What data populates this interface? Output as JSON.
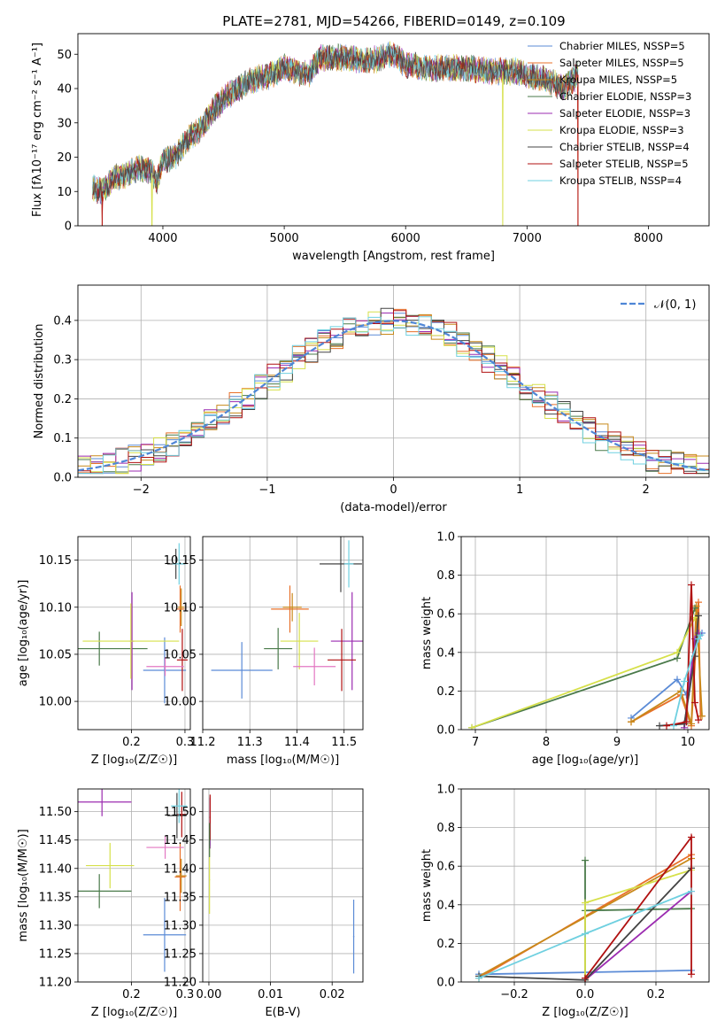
{
  "figure_title": "PLATE=2781, MJD=54266, FIBERID=0149, z=0.109",
  "series": [
    {
      "name": "Chabrier MILES, N<sub>SSP</sub>=5",
      "label": "Chabrier MILES, NSSP=5",
      "color": "#5b8bd6"
    },
    {
      "name": "Salpeter MILES, NSSP=5",
      "label": "Salpeter MILES, NSSP=5",
      "color": "#e8702a"
    },
    {
      "name": "Kroupa MILES, NSSP=5",
      "label": "Kroupa MILES, NSSP=5",
      "color": "#c8891a"
    },
    {
      "name": "Chabrier ELODIE, NSSP=3",
      "label": "Chabrier ELODIE, NSSP=3",
      "color": "#4a7a4a"
    },
    {
      "name": "Salpeter ELODIE, NSSP=3",
      "label": "Salpeter ELODIE, NSSP=3",
      "color": "#9b2bb0"
    },
    {
      "name": "Kroupa ELODIE, NSSP=3",
      "label": "Kroupa ELODIE, NSSP=3",
      "color": "#d6e04a"
    },
    {
      "name": "Chabrier STELIB, NSSP=4",
      "label": "Chabrier STELIB, NSSP=4",
      "color": "#444444"
    },
    {
      "name": "Salpeter STELIB, NSSP=5",
      "label": "Salpeter STELIB, NSSP=5",
      "color": "#b01010"
    },
    {
      "name": "Kroupa STELIB, NSSP=4",
      "label": "Kroupa STELIB, NSSP=4",
      "color": "#6fd0e0"
    }
  ],
  "chart_data": [
    {
      "id": "spectrum",
      "type": "line",
      "xlabel": "wavelength [Angstrom, rest frame]",
      "ylabel": "Flux [fλ10⁻¹⁷ erg cm⁻² s⁻¹ A⁻¹]",
      "xlim": [
        3300,
        8500
      ],
      "ylim": [
        0,
        56
      ],
      "xticks": [
        4000,
        5000,
        6000,
        7000,
        8000
      ],
      "yticks": [
        0,
        10,
        20,
        30,
        40,
        50
      ],
      "x_knots": [
        3420,
        3500,
        3600,
        3700,
        3800,
        3900,
        3950,
        4000,
        4100,
        4200,
        4300,
        4400,
        4500,
        4700,
        4900,
        5000,
        5100,
        5200,
        5300,
        5500,
        5700,
        5900,
        6000,
        6200,
        6500,
        6700,
        6900,
        7000,
        7100,
        7200,
        7300,
        7420
      ],
      "y_knots": [
        11,
        10,
        14,
        15,
        17,
        16,
        13,
        19,
        20,
        25,
        28,
        33,
        37,
        42,
        44,
        46,
        45,
        44,
        49,
        49,
        48,
        50,
        47,
        46,
        46,
        45,
        45,
        44,
        43,
        42,
        40,
        44
      ],
      "dropouts": [
        {
          "x": 3500,
          "series": [
            1,
            7
          ]
        },
        {
          "x": 3910,
          "series": [
            5
          ]
        },
        {
          "x": 6800,
          "series": [
            5
          ]
        },
        {
          "x": 7420,
          "series": [
            1,
            7
          ]
        }
      ]
    },
    {
      "id": "residuals",
      "type": "histogram",
      "xlabel": "(data-model)/error",
      "ylabel": "Normed distribution",
      "xlim": [
        -2.5,
        2.5
      ],
      "ylim": [
        0,
        0.49
      ],
      "xticks": [
        -2,
        -1,
        0,
        1,
        2
      ],
      "yticks": [
        0.0,
        0.1,
        0.2,
        0.3,
        0.4
      ],
      "bin_width": 0.1,
      "grid": true,
      "reference_curve": {
        "label": "𝒩(0, 1)",
        "color": "#4f86d6"
      }
    },
    {
      "id": "age-vs-Z",
      "type": "errorbar",
      "xlabel": "Z [log₁₀(Z/Z☉)]",
      "ylabel": "age  [log₁₀(age/yr)]",
      "xlim": [
        0.1,
        0.31
      ],
      "ylim": [
        9.97,
        10.175
      ],
      "xticks": [
        0.2,
        0.3
      ],
      "yticks": [
        10.0,
        10.05,
        10.1,
        10.15
      ],
      "points": [
        {
          "s": 0,
          "x": 0.262,
          "y": 10.033,
          "xe": 0.04,
          "ye": 0.035
        },
        {
          "s": 1,
          "x": 0.291,
          "y": 10.098,
          "xe": 0.008,
          "ye": 0.025
        },
        {
          "s": 2,
          "x": 0.293,
          "y": 10.1,
          "xe": 0.006,
          "ye": 0.02
        },
        {
          "s": 3,
          "x": 0.14,
          "y": 10.056,
          "xe": 0.09,
          "ye": 0.018
        },
        {
          "s": 4,
          "x": 0.201,
          "y": 10.064,
          "xe": 0.004,
          "ye": 0.052
        },
        {
          "s": 5,
          "x": 0.199,
          "y": 10.064,
          "xe": 0.09,
          "ye": 0.04
        },
        {
          "s": 6,
          "x": 0.283,
          "y": 10.146,
          "xe": 0.016,
          "ye": 0.016
        },
        {
          "s": 7,
          "x": 0.295,
          "y": 10.044,
          "xe": 0.01,
          "ye": 0.033
        },
        {
          "s": 8,
          "x": 0.289,
          "y": 10.146,
          "xe": 0.012,
          "ye": 0.022
        }
      ],
      "extra_points": [
        {
          "s": 1,
          "x": 0.263,
          "y": 10.037,
          "xe": 0.035,
          "ye": 0.01,
          "color": "#e377c2"
        }
      ]
    },
    {
      "id": "age-vs-mass",
      "type": "errorbar",
      "xlabel": "mass [log₁₀(M/M☉)]",
      "xlim": [
        11.2,
        11.54
      ],
      "ylim": [
        9.97,
        10.175
      ],
      "xticks": [
        11.2,
        11.3,
        11.4,
        11.5
      ],
      "yticks": [
        10.0,
        10.05,
        10.1,
        10.15
      ],
      "points": [
        {
          "s": 0,
          "x": 11.283,
          "y": 10.033,
          "xe": 0.065,
          "ye": 0.03
        },
        {
          "s": 1,
          "x": 11.385,
          "y": 10.098,
          "xe": 0.04,
          "ye": 0.025
        },
        {
          "s": 2,
          "x": 11.39,
          "y": 10.1,
          "xe": 0.02,
          "ye": 0.015
        },
        {
          "s": 3,
          "x": 11.36,
          "y": 10.056,
          "xe": 0.03,
          "ye": 0.022
        },
        {
          "s": 4,
          "x": 11.517,
          "y": 10.064,
          "xe": 0.045,
          "ye": 0.052
        },
        {
          "s": 5,
          "x": 11.405,
          "y": 10.064,
          "xe": 0.04,
          "ye": 0.03
        },
        {
          "s": 6,
          "x": 11.493,
          "y": 10.146,
          "xe": 0.045,
          "ye": 0.03
        },
        {
          "s": 7,
          "x": 11.495,
          "y": 10.044,
          "xe": 0.03,
          "ye": 0.033
        },
        {
          "s": 8,
          "x": 11.51,
          "y": 10.146,
          "xe": 0.01,
          "ye": 0.025
        }
      ],
      "extra_points": [
        {
          "s": 1,
          "x": 11.437,
          "y": 10.037,
          "xe": 0.045,
          "ye": 0.02,
          "color": "#e377c2"
        }
      ]
    },
    {
      "id": "weight-vs-age",
      "type": "line",
      "xlabel": "age  [log₁₀(age/yr)]",
      "ylabel": "mass weight",
      "xlim": [
        6.8,
        10.3
      ],
      "ylim": [
        0,
        1.0
      ],
      "xticks": [
        7,
        8,
        9,
        10
      ],
      "yticks": [
        0.0,
        0.2,
        0.4,
        0.6,
        0.8,
        1.0
      ],
      "grid": true,
      "lines": [
        {
          "s": 0,
          "pts": [
            [
              9.2,
              0.06
            ],
            [
              9.85,
              0.26
            ],
            [
              9.98,
              0.18
            ],
            [
              10.15,
              0.49
            ],
            [
              10.2,
              0.5
            ]
          ]
        },
        {
          "s": 1,
          "pts": [
            [
              9.2,
              0.04
            ],
            [
              9.9,
              0.18
            ],
            [
              10.05,
              0.02
            ],
            [
              10.15,
              0.66
            ],
            [
              10.18,
              0.07
            ]
          ]
        },
        {
          "s": 2,
          "pts": [
            [
              9.2,
              0.04
            ],
            [
              9.9,
              0.2
            ],
            [
              10.05,
              0.03
            ],
            [
              10.12,
              0.64
            ],
            [
              10.2,
              0.07
            ]
          ]
        },
        {
          "s": 3,
          "pts": [
            [
              6.95,
              0.01
            ],
            [
              9.85,
              0.37
            ],
            [
              10.1,
              0.63
            ]
          ]
        },
        {
          "s": 4,
          "pts": [
            [
              9.95,
              0.01
            ],
            [
              10.1,
              0.47
            ],
            [
              10.15,
              0.5
            ]
          ]
        },
        {
          "s": 5,
          "pts": [
            [
              6.95,
              0.01
            ],
            [
              9.85,
              0.4
            ],
            [
              10.1,
              0.58
            ]
          ]
        },
        {
          "s": 6,
          "pts": [
            [
              9.6,
              0.02
            ],
            [
              9.95,
              0.03
            ],
            [
              10.1,
              0.38
            ],
            [
              10.15,
              0.59
            ]
          ]
        },
        {
          "s": 7,
          "pts": [
            [
              9.7,
              0.02
            ],
            [
              9.98,
              0.04
            ],
            [
              10.05,
              0.75
            ],
            [
              10.1,
              0.14
            ],
            [
              10.15,
              0.05
            ]
          ]
        },
        {
          "s": 8,
          "pts": [
            [
              9.8,
              0.02
            ],
            [
              9.95,
              0.25
            ],
            [
              10.15,
              0.47
            ],
            [
              10.18,
              0.49
            ]
          ]
        }
      ]
    },
    {
      "id": "mass-vs-Z",
      "type": "errorbar",
      "xlabel": "Z [log₁₀(Z/Z☉)]",
      "ylabel": "mass [log₁₀(M/M☉)]",
      "xlim": [
        0.1,
        0.31
      ],
      "ylim": [
        11.2,
        11.54
      ],
      "xticks": [
        0.2,
        0.3
      ],
      "yticks": [
        11.2,
        11.25,
        11.3,
        11.35,
        11.4,
        11.45,
        11.5
      ],
      "points": [
        {
          "s": 0,
          "x": 0.262,
          "y": 11.283,
          "xe": 0.04,
          "ye": 0.065
        },
        {
          "s": 1,
          "x": 0.291,
          "y": 11.385,
          "xe": 0.01,
          "ye": 0.06
        },
        {
          "s": 2,
          "x": 0.293,
          "y": 11.387,
          "xe": 0.01,
          "ye": 0.03
        },
        {
          "s": 3,
          "x": 0.14,
          "y": 11.36,
          "xe": 0.06,
          "ye": 0.03
        },
        {
          "s": 4,
          "x": 0.145,
          "y": 11.517,
          "xe": 0.055,
          "ye": 0.025
        },
        {
          "s": 5,
          "x": 0.16,
          "y": 11.405,
          "xe": 0.045,
          "ye": 0.04
        },
        {
          "s": 6,
          "x": 0.285,
          "y": 11.493,
          "xe": 0.018,
          "ye": 0.04
        },
        {
          "s": 7,
          "x": 0.294,
          "y": 11.495,
          "xe": 0.008,
          "ye": 0.04
        },
        {
          "s": 8,
          "x": 0.289,
          "y": 11.51,
          "xe": 0.015,
          "ye": 0.03
        }
      ],
      "extra_points": [
        {
          "s": 1,
          "x": 0.263,
          "y": 11.437,
          "xe": 0.035,
          "ye": 0.02,
          "color": "#e377c2"
        }
      ]
    },
    {
      "id": "mass-vs-ebv",
      "type": "errorbar",
      "xlabel": "E(B-V)",
      "xlim": [
        -0.001,
        0.025
      ],
      "ylim": [
        11.2,
        11.54
      ],
      "xticks": [
        0.0,
        0.01,
        0.02
      ],
      "yticks": [
        11.2,
        11.25,
        11.3,
        11.35,
        11.4,
        11.45,
        11.5
      ],
      "points": [
        {
          "s": 0,
          "x": 0.0235,
          "y": 11.28,
          "xe": 0.0001,
          "ye": 0.065
        },
        {
          "s": 4,
          "x": 0.0002,
          "y": 11.48,
          "xe": 0.0001,
          "ye": 0.045
        },
        {
          "s": 7,
          "x": 0.0002,
          "y": 11.49,
          "xe": 0.0001,
          "ye": 0.04
        },
        {
          "s": 5,
          "x": 0.0001,
          "y": 11.38,
          "xe": 0.0001,
          "ye": 0.06
        },
        {
          "s": 3,
          "x": 0.0001,
          "y": 11.45,
          "xe": 0.0001,
          "ye": 0.03
        }
      ]
    },
    {
      "id": "weight-vs-Z",
      "type": "line",
      "xlabel": "Z [log₁₀(Z/Z☉)]",
      "ylabel": "mass weight",
      "xlim": [
        -0.35,
        0.35
      ],
      "ylim": [
        0,
        1.0
      ],
      "xticks": [
        -0.2,
        0.0,
        0.2
      ],
      "yticks": [
        0.0,
        0.2,
        0.4,
        0.6,
        0.8,
        1.0
      ],
      "grid": true,
      "lines": [
        {
          "s": 0,
          "pts": [
            [
              -0.3,
              0.04
            ],
            [
              0.0,
              0.05
            ],
            [
              0.3,
              0.06
            ]
          ]
        },
        {
          "s": 1,
          "pts": [
            [
              -0.3,
              0.02
            ],
            [
              0.3,
              0.66
            ]
          ]
        },
        {
          "s": 2,
          "pts": [
            [
              -0.3,
              0.03
            ],
            [
              0.3,
              0.64
            ]
          ]
        },
        {
          "s": 3,
          "pts": [
            [
              0.0,
              0.01
            ],
            [
              0.0,
              0.63
            ],
            [
              0.0,
              0.37
            ],
            [
              0.3,
              0.38
            ]
          ]
        },
        {
          "s": 4,
          "pts": [
            [
              0.0,
              0.01
            ],
            [
              0.3,
              0.47
            ]
          ]
        },
        {
          "s": 5,
          "pts": [
            [
              0.0,
              0.01
            ],
            [
              0.0,
              0.41
            ],
            [
              0.3,
              0.58
            ]
          ]
        },
        {
          "s": 6,
          "pts": [
            [
              -0.3,
              0.03
            ],
            [
              0.0,
              0.01
            ],
            [
              0.3,
              0.59
            ]
          ]
        },
        {
          "s": 7,
          "pts": [
            [
              0.0,
              0.02
            ],
            [
              0.3,
              0.75
            ],
            [
              0.3,
              0.04
            ]
          ]
        },
        {
          "s": 8,
          "pts": [
            [
              -0.3,
              0.02
            ],
            [
              0.0,
              0.25
            ],
            [
              0.3,
              0.47
            ]
          ]
        }
      ]
    }
  ]
}
